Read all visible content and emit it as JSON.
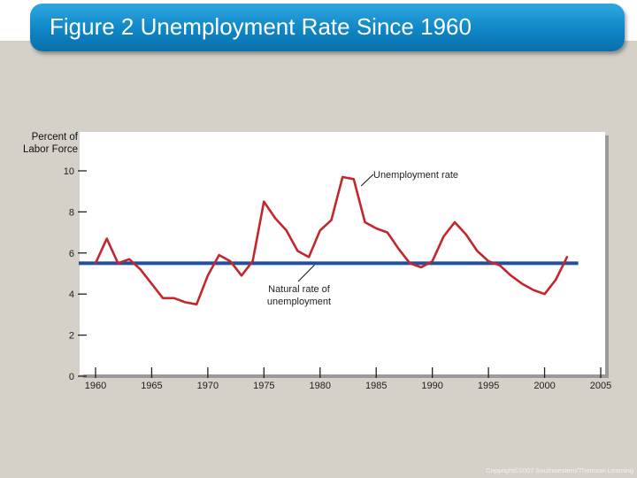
{
  "slide": {
    "title": "Figure 2 Unemployment Rate Since 1960",
    "copyright": "Copyright©2007 Southwestern/Thomson Learning"
  },
  "colors": {
    "title_bar": "#1591cf",
    "background": "#d5d1c8",
    "unemployment_line": "#c4262e",
    "natural_rate_line": "#1f4fa3"
  },
  "chart_data": {
    "type": "line",
    "title": "",
    "xlabel": "",
    "ylabel": "Percent of Labor Force",
    "xlim": [
      1960,
      2005
    ],
    "ylim": [
      0,
      10
    ],
    "grid": false,
    "x_ticks": [
      1960,
      1965,
      1970,
      1975,
      1980,
      1985,
      1990,
      1995,
      2000,
      2005
    ],
    "y_ticks": [
      0,
      2,
      4,
      6,
      8,
      10
    ],
    "series": [
      {
        "name": "Unemployment rate",
        "x": [
          1960,
          1961,
          1962,
          1963,
          1964,
          1965,
          1966,
          1967,
          1968,
          1969,
          1970,
          1971,
          1972,
          1973,
          1974,
          1975,
          1976,
          1977,
          1978,
          1979,
          1980,
          1981,
          1982,
          1983,
          1984,
          1985,
          1986,
          1987,
          1988,
          1989,
          1990,
          1991,
          1992,
          1993,
          1994,
          1995,
          1996,
          1997,
          1998,
          1999,
          2000,
          2001,
          2002
        ],
        "y": [
          5.5,
          6.7,
          5.5,
          5.7,
          5.2,
          4.5,
          3.8,
          3.8,
          3.6,
          3.5,
          4.9,
          5.9,
          5.6,
          4.9,
          5.6,
          8.5,
          7.7,
          7.1,
          6.1,
          5.8,
          7.1,
          7.6,
          9.7,
          9.6,
          7.5,
          7.2,
          7.0,
          6.2,
          5.5,
          5.3,
          5.6,
          6.8,
          7.5,
          6.9,
          6.1,
          5.6,
          5.4,
          4.9,
          4.5,
          4.2,
          4.0,
          4.7,
          5.8
        ]
      },
      {
        "name": "Natural rate of unemployment",
        "x": [
          1958.5,
          2003
        ],
        "y": [
          5.5,
          5.5
        ]
      }
    ],
    "annotations": [
      {
        "text": "Unemployment rate",
        "x": 1983.5,
        "y": 9.7
      },
      {
        "text": "Natural rate of unemployment",
        "x": 1979.5,
        "y": 5.5
      }
    ]
  }
}
